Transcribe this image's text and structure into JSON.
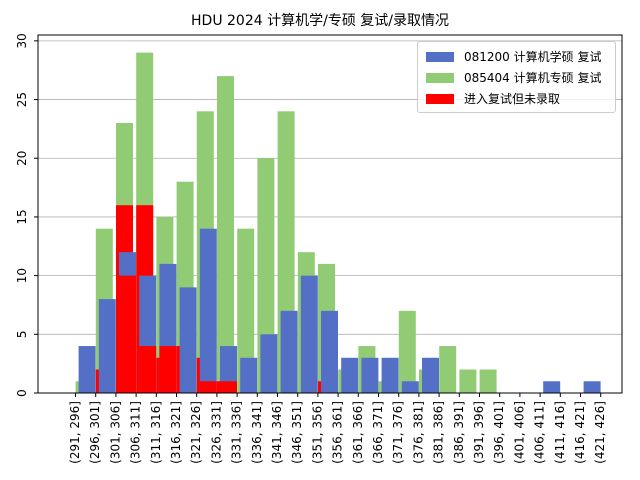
{
  "chart_data": {
    "type": "bar",
    "title": "HDU 2024 计算机学/专硕 复试/录取情况",
    "xlabel": "",
    "ylabel": "",
    "ylim": [
      0,
      30.5
    ],
    "yticks": [
      0,
      5,
      10,
      15,
      20,
      25,
      30
    ],
    "grid": "y",
    "legend_position": "top-right",
    "categories": [
      "(291, 296]",
      "(296, 301]",
      "(301, 306]",
      "(306, 311]",
      "(311, 316]",
      "(316, 321]",
      "(321, 326]",
      "(326, 331]",
      "(331, 336]",
      "(336, 341]",
      "(341, 346]",
      "(346, 351]",
      "(351, 356]",
      "(356, 361]",
      "(361, 366]",
      "(366, 371]",
      "(371, 376]",
      "(376, 381]",
      "(381, 386]",
      "(386, 391]",
      "(391, 396]",
      "(396, 401]",
      "(401, 406]",
      "(406, 411]",
      "(411, 416]",
      "(416, 421]",
      "(421, 426]"
    ],
    "series": [
      {
        "name": "081200 计算机学硕 复试",
        "color": "#5470c6",
        "values": [
          0,
          4,
          8,
          12,
          10,
          11,
          9,
          14,
          4,
          3,
          5,
          7,
          10,
          7,
          3,
          3,
          3,
          1,
          3,
          0,
          0,
          0,
          0,
          0,
          1,
          0,
          1
        ]
      },
      {
        "name": "085404 计算机专硕 复试",
        "color": "#91cc75",
        "values": [
          1,
          14,
          23,
          29,
          15,
          18,
          24,
          27,
          14,
          20,
          24,
          12,
          11,
          2,
          4,
          1,
          7,
          2,
          4,
          2,
          2,
          0,
          0,
          0,
          0,
          0,
          0
        ]
      },
      {
        "name": "进入复试但未录取",
        "color": "#ff0000",
        "values": [
          [
            0,
            0
          ],
          [
            0,
            2
          ],
          [
            0,
            16
          ],
          [
            10,
            16
          ],
          [
            4,
            3
          ],
          [
            4,
            4
          ],
          [
            0,
            3
          ],
          [
            1,
            1
          ],
          [
            1,
            0
          ],
          [
            0,
            0
          ],
          [
            0,
            0
          ],
          [
            0,
            0
          ],
          [
            0,
            1
          ],
          [
            0,
            0
          ],
          [
            0,
            0
          ],
          [
            0,
            0
          ],
          [
            0,
            0
          ],
          [
            0,
            0
          ],
          [
            0,
            0
          ],
          [
            0,
            0
          ],
          [
            0,
            0
          ],
          [
            0,
            0
          ],
          [
            0,
            0
          ],
          [
            0,
            0
          ],
          [
            0,
            0
          ],
          [
            0,
            0
          ],
          [
            0,
            0
          ]
        ]
      }
    ]
  }
}
